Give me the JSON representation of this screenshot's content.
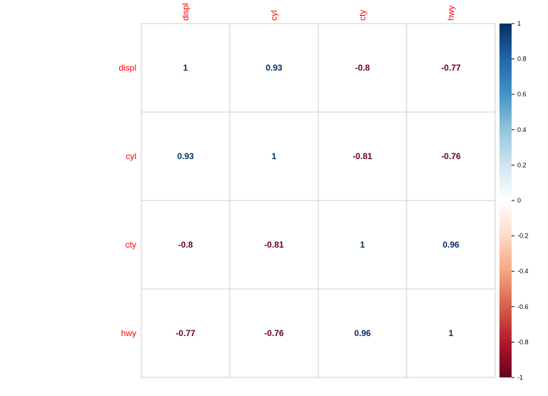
{
  "chart_data": {
    "type": "heatmap",
    "variables": [
      "displ",
      "cyl",
      "cty",
      "hwy"
    ],
    "values": [
      [
        1,
        0.93,
        -0.8,
        -0.77
      ],
      [
        0.93,
        1,
        -0.81,
        -0.76
      ],
      [
        -0.8,
        -0.81,
        1,
        0.96
      ],
      [
        -0.77,
        -0.76,
        0.96,
        1
      ]
    ],
    "value_labels": [
      [
        "1",
        "0.93",
        "-0.8",
        "-0.77"
      ],
      [
        "0.93",
        "1",
        "-0.81",
        "-0.76"
      ],
      [
        "-0.8",
        "-0.81",
        "1",
        "0.96"
      ],
      [
        "-0.77",
        "-0.76",
        "0.96",
        "1"
      ]
    ],
    "colorbar": {
      "range": [
        -1,
        1
      ],
      "ticks": [
        "1",
        "0.8",
        "0.6",
        "0.4",
        "0.2",
        "0",
        "-0.2",
        "-0.4",
        "-0.6",
        "-0.8",
        "-1"
      ]
    },
    "colors": {
      "label": "#ff0000",
      "grid": "#cccccc",
      "positive": "#053061",
      "negative": "#67001f",
      "scale": [
        "#67001f",
        "#b2182b",
        "#d6604d",
        "#f4a582",
        "#fddbc7",
        "#ffffff",
        "#d1e5f0",
        "#92c5de",
        "#4393c3",
        "#2166ac",
        "#053061"
      ]
    },
    "grid": true,
    "legend_position": "right"
  }
}
